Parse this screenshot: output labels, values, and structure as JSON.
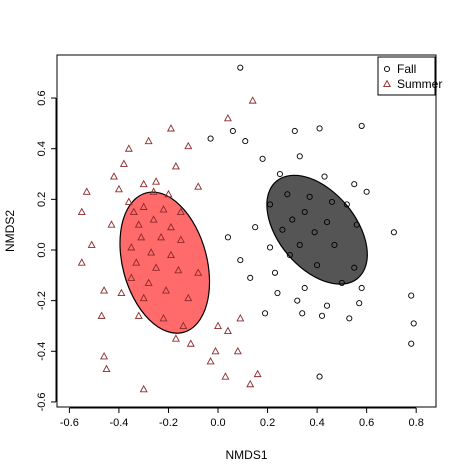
{
  "chart_data": {
    "type": "scatter",
    "title": "",
    "xlabel": "NMDS1",
    "ylabel": "NMDS2",
    "xlim": [
      -0.65,
      0.88
    ],
    "ylim": [
      -0.62,
      0.77
    ],
    "xticks": [
      -0.6,
      -0.4,
      -0.2,
      0.0,
      0.2,
      0.4,
      0.6,
      0.8
    ],
    "xtick_labels": [
      "-0.6",
      "-0.4",
      "-0.2",
      "0.0",
      "0.2",
      "0.4",
      "0.6",
      "0.8"
    ],
    "yticks": [
      -0.6,
      -0.4,
      -0.2,
      0.0,
      0.2,
      0.4,
      0.6
    ],
    "ytick_labels": [
      "-0.6",
      "-0.4",
      "-0.2",
      "0.0",
      "0.2",
      "0.4",
      "0.6"
    ],
    "grid": false,
    "legend_position": "top-right",
    "series": [
      {
        "name": "Fall",
        "marker": "circle",
        "color": "#000000",
        "points": [
          [
            0.09,
            0.72
          ],
          [
            0.58,
            0.49
          ],
          [
            0.41,
            0.48
          ],
          [
            0.31,
            0.47
          ],
          [
            0.06,
            0.47
          ],
          [
            -0.03,
            0.44
          ],
          [
            0.11,
            0.43
          ],
          [
            0.33,
            0.37
          ],
          [
            0.18,
            0.36
          ],
          [
            0.25,
            0.3
          ],
          [
            0.43,
            0.29
          ],
          [
            0.55,
            0.26
          ],
          [
            0.6,
            0.23
          ],
          [
            0.28,
            0.22
          ],
          [
            0.37,
            0.21
          ],
          [
            0.46,
            0.19
          ],
          [
            0.52,
            0.18
          ],
          [
            0.21,
            0.18
          ],
          [
            0.35,
            0.15
          ],
          [
            0.3,
            0.12
          ],
          [
            0.44,
            0.11
          ],
          [
            0.56,
            0.1
          ],
          [
            0.15,
            0.09
          ],
          [
            0.26,
            0.08
          ],
          [
            0.39,
            0.07
          ],
          [
            0.71,
            0.07
          ],
          [
            0.04,
            0.05
          ],
          [
            0.33,
            0.02
          ],
          [
            0.47,
            0.02
          ],
          [
            0.21,
            0.01
          ],
          [
            0.29,
            -0.02
          ],
          [
            0.09,
            -0.04
          ],
          [
            0.55,
            -0.07
          ],
          [
            0.4,
            -0.06
          ],
          [
            0.23,
            -0.09
          ],
          [
            0.13,
            -0.11
          ],
          [
            0.5,
            -0.13
          ],
          [
            0.58,
            -0.15
          ],
          [
            0.35,
            -0.15
          ],
          [
            0.24,
            -0.17
          ],
          [
            0.32,
            -0.2
          ],
          [
            0.44,
            -0.22
          ],
          [
            0.57,
            -0.21
          ],
          [
            0.78,
            -0.18
          ],
          [
            0.19,
            -0.25
          ],
          [
            0.34,
            -0.25
          ],
          [
            0.42,
            -0.26
          ],
          [
            0.53,
            -0.27
          ],
          [
            0.79,
            -0.29
          ],
          [
            0.78,
            -0.37
          ],
          [
            0.41,
            -0.5
          ]
        ]
      },
      {
        "name": "Summer",
        "marker": "triangle",
        "color": "#8b2a2a",
        "points": [
          [
            0.14,
            0.59
          ],
          [
            0.04,
            0.52
          ],
          [
            -0.19,
            0.48
          ],
          [
            -0.28,
            0.43
          ],
          [
            -0.12,
            0.41
          ],
          [
            -0.36,
            0.4
          ],
          [
            -0.38,
            0.34
          ],
          [
            -0.17,
            0.33
          ],
          [
            -0.42,
            0.29
          ],
          [
            -0.25,
            0.27
          ],
          [
            -0.3,
            0.26
          ],
          [
            -0.4,
            0.24
          ],
          [
            -0.26,
            0.23
          ],
          [
            -0.53,
            0.23
          ],
          [
            -0.2,
            0.22
          ],
          [
            -0.08,
            0.25
          ],
          [
            -0.36,
            0.19
          ],
          [
            -0.3,
            0.17
          ],
          [
            -0.22,
            0.16
          ],
          [
            -0.55,
            0.15
          ],
          [
            -0.34,
            0.15
          ],
          [
            -0.15,
            0.15
          ],
          [
            -0.26,
            0.12
          ],
          [
            -0.32,
            0.1
          ],
          [
            -0.19,
            0.09
          ],
          [
            -0.43,
            0.1
          ],
          [
            -0.31,
            0.05
          ],
          [
            -0.23,
            0.05
          ],
          [
            -0.15,
            0.04
          ],
          [
            -0.51,
            0.02
          ],
          [
            -0.35,
            0.01
          ],
          [
            -0.27,
            -0.01
          ],
          [
            -0.19,
            -0.02
          ],
          [
            -0.33,
            -0.05
          ],
          [
            -0.55,
            -0.05
          ],
          [
            -0.25,
            -0.07
          ],
          [
            -0.16,
            -0.08
          ],
          [
            -0.35,
            -0.11
          ],
          [
            -0.08,
            -0.09
          ],
          [
            -0.28,
            -0.13
          ],
          [
            -0.21,
            -0.16
          ],
          [
            -0.39,
            -0.17
          ],
          [
            -0.3,
            -0.19
          ],
          [
            -0.46,
            -0.16
          ],
          [
            -0.12,
            -0.19
          ],
          [
            -0.47,
            -0.26
          ],
          [
            -0.32,
            -0.26
          ],
          [
            -0.22,
            -0.27
          ],
          [
            -0.14,
            -0.3
          ],
          [
            0.0,
            -0.3
          ],
          [
            0.09,
            -0.27
          ],
          [
            0.04,
            -0.32
          ],
          [
            -0.17,
            -0.35
          ],
          [
            -0.11,
            -0.37
          ],
          [
            -0.01,
            -0.4
          ],
          [
            0.08,
            -0.4
          ],
          [
            -0.03,
            -0.44
          ],
          [
            -0.46,
            -0.42
          ],
          [
            -0.45,
            -0.47
          ],
          [
            0.16,
            -0.49
          ],
          [
            0.13,
            -0.53
          ],
          [
            -0.3,
            -0.55
          ],
          [
            0.03,
            -0.5
          ]
        ]
      }
    ],
    "ellipses": [
      {
        "group": "Summer",
        "cx": -0.215,
        "cy": -0.05,
        "rx": 0.17,
        "ry": 0.285,
        "rotation_deg": -15,
        "fill": "#ff6b6b",
        "stroke": "#000000"
      },
      {
        "group": "Fall",
        "cx": 0.4,
        "cy": 0.08,
        "rx": 0.155,
        "ry": 0.25,
        "rotation_deg": -40,
        "fill": "#555555",
        "stroke": "#000000"
      }
    ]
  }
}
